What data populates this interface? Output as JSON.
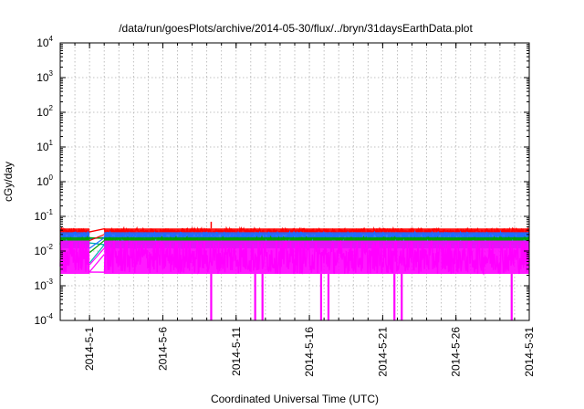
{
  "chart_data": {
    "type": "line",
    "title": "/data/run/goesPlots/archive/2014-05-30/flux/../bryn/31daysEarthData.plot",
    "xlabel": "Coordinated Universal Time (UTC)",
    "ylabel": "cGy/day",
    "yscale": "log",
    "ylim": [
      0.0001,
      10000
    ],
    "xlim": [
      "2014-04-29",
      "2014-05-31"
    ],
    "grid": true,
    "legend": "none",
    "x_ticks": [
      "2014-5-1",
      "2014-5-6",
      "2014-5-11",
      "2014-5-16",
      "2014-5-21",
      "2014-5-26",
      "2014-5-31"
    ],
    "y_ticks": [
      {
        "value": 0.0001,
        "base": "10",
        "exp": "-4"
      },
      {
        "value": 0.001,
        "base": "10",
        "exp": "-3"
      },
      {
        "value": 0.01,
        "base": "10",
        "exp": "-2"
      },
      {
        "value": 0.1,
        "base": "10",
        "exp": "-1"
      },
      {
        "value": 1,
        "base": "10",
        "exp": "0"
      },
      {
        "value": 10,
        "base": "10",
        "exp": "1"
      },
      {
        "value": 100,
        "base": "10",
        "exp": "2"
      },
      {
        "value": 1000,
        "base": "10",
        "exp": "3"
      },
      {
        "value": 10000,
        "base": "10",
        "exp": "4"
      }
    ],
    "gap": {
      "start": "2014-05-01",
      "end": "2014-05-02",
      "from": [
        0.02,
        0.012,
        0.009,
        0.0045,
        0.004,
        0.0025
      ],
      "to": [
        0.03,
        0.024,
        0.02,
        0.015,
        0.012,
        0.008
      ]
    },
    "series": [
      {
        "color": "#ff0000",
        "upper": 0.045,
        "lower": 0.03,
        "peaks": [
          {
            "x": "2014-05-09",
            "y": 0.07
          }
        ]
      },
      {
        "color": "#1e6bff",
        "upper": 0.035,
        "lower": 0.02
      },
      {
        "color": "#00a000",
        "upper": 0.025,
        "lower": 0.015
      },
      {
        "color": "#00b0b0",
        "upper": 0.02,
        "lower": 0.012
      },
      {
        "color": "#ff00ff",
        "upper": 0.02,
        "lower": 0.0022,
        "dropouts": [
          "2014-05-09",
          "2014-05-12",
          "2014-05-12",
          "2014-05-16",
          "2014-05-17",
          "2014-05-21",
          "2014-05-22",
          "2014-05-29"
        ]
      }
    ]
  }
}
